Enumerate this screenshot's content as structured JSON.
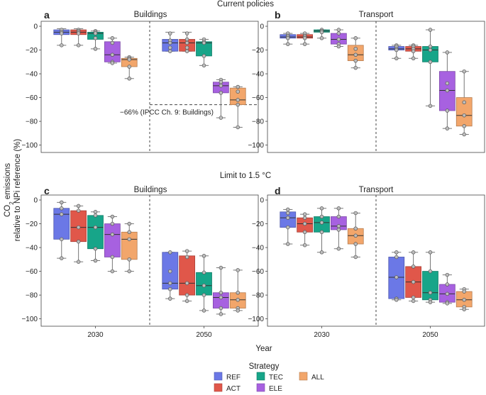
{
  "figure": {
    "row_titles": [
      "Current policies",
      "Limit to 1.5 °C"
    ],
    "ylabel_line1": "CO2 emissions",
    "ylabel_line2": "relative to NPi reference (%)",
    "xlabel": "Year",
    "legend_title": "Strategy"
  },
  "chart_data": [
    {
      "type": "box",
      "panel": "a",
      "title": "Buildings",
      "categories": [
        "2030",
        "2050"
      ],
      "ylim": [
        -105,
        3
      ],
      "yticks": [
        0,
        -20,
        -40,
        -60,
        -80,
        -100
      ],
      "grid": false,
      "reference_line": {
        "y": -66,
        "label": "−66% (IPCC Ch. 9: Buildings)"
      },
      "series": [
        {
          "name": "REF",
          "boxes": [
            {
              "year": "2030",
              "q1": -7,
              "median": -5,
              "q3": -3,
              "whisker_low": -16,
              "whisker_high": -2,
              "points": [
                -3,
                -5,
                -5,
                -6,
                -16
              ]
            },
            {
              "year": "2050",
              "q1": -21,
              "median": -14,
              "q3": -11,
              "whisker_low": -21,
              "whisker_high": -5,
              "points": [
                -6,
                -12,
                -14,
                -18,
                -21
              ]
            }
          ]
        },
        {
          "name": "ACT",
          "boxes": [
            {
              "year": "2030",
              "q1": -7,
              "median": -5,
              "q3": -3,
              "whisker_low": -16,
              "whisker_high": -2,
              "points": [
                -3,
                -4,
                -5,
                -6,
                -16
              ]
            },
            {
              "year": "2050",
              "q1": -21,
              "median": -14,
              "q3": -11,
              "whisker_low": -21,
              "whisker_high": -5,
              "points": [
                -6,
                -11,
                -14,
                -18,
                -21
              ]
            }
          ]
        },
        {
          "name": "TEC",
          "boxes": [
            {
              "year": "2030",
              "q1": -11,
              "median": -6,
              "q3": -5,
              "whisker_low": -19,
              "whisker_high": -4,
              "points": [
                -4,
                -5,
                -6,
                -10,
                -19
              ]
            },
            {
              "year": "2050",
              "q1": -25,
              "median": -14,
              "q3": -13,
              "whisker_low": -33,
              "whisker_high": -11,
              "points": [
                -11,
                -13,
                -14,
                -25,
                -33
              ]
            }
          ]
        },
        {
          "name": "ELE",
          "boxes": [
            {
              "year": "2030",
              "q1": -30,
              "median": -24,
              "q3": -13,
              "whisker_low": -31,
              "whisker_high": -10,
              "points": [
                -10,
                -14,
                -24,
                -30,
                -31
              ]
            },
            {
              "year": "2050",
              "q1": -56,
              "median": -50,
              "q3": -47,
              "whisker_low": -77,
              "whisker_high": -45,
              "points": [
                -45,
                -47,
                -50,
                -56,
                -77
              ]
            }
          ]
        },
        {
          "name": "ALL",
          "boxes": [
            {
              "year": "2030",
              "q1": -34,
              "median": -28,
              "q3": -27,
              "whisker_low": -44,
              "whisker_high": -26,
              "points": [
                -26,
                -27,
                -28,
                -34,
                -44
              ]
            },
            {
              "year": "2050",
              "q1": -66,
              "median": -62,
              "q3": -52,
              "whisker_low": -85,
              "whisker_high": -51,
              "points": [
                -51,
                -55,
                -62,
                -66,
                -85
              ]
            }
          ]
        }
      ]
    },
    {
      "type": "box",
      "panel": "b",
      "title": "Transport",
      "categories": [
        "2030",
        "2050"
      ],
      "ylim": [
        -105,
        3
      ],
      "yticks": [
        0,
        -20,
        -40,
        -60,
        -80,
        -100
      ],
      "grid": false,
      "series": [
        {
          "name": "REF",
          "boxes": [
            {
              "year": "2030",
              "q1": -10,
              "median": -9,
              "q3": -7,
              "whisker_low": -15,
              "whisker_high": -6,
              "points": [
                -6,
                -8,
                -9,
                -10,
                -15
              ]
            },
            {
              "year": "2050",
              "q1": -20,
              "median": -19,
              "q3": -17,
              "whisker_low": -27,
              "whisker_high": -16,
              "points": [
                -16,
                -17,
                -19,
                -20,
                -27
              ]
            }
          ]
        },
        {
          "name": "ACT",
          "boxes": [
            {
              "year": "2030",
              "q1": -10,
              "median": -9,
              "q3": -7,
              "whisker_low": -15,
              "whisker_high": -6,
              "points": [
                -6,
                -8,
                -9,
                -10,
                -15
              ]
            },
            {
              "year": "2050",
              "q1": -21,
              "median": -19,
              "q3": -17,
              "whisker_low": -27,
              "whisker_high": -16,
              "points": [
                -16,
                -17,
                -19,
                -21,
                -27
              ]
            }
          ]
        },
        {
          "name": "TEC",
          "boxes": [
            {
              "year": "2030",
              "q1": -5,
              "median": -4,
              "q3": -3,
              "whisker_low": -10,
              "whisker_high": -3,
              "points": [
                -3,
                -4,
                -4,
                -5,
                -10
              ]
            },
            {
              "year": "2050",
              "q1": -30,
              "median": -20,
              "q3": -17,
              "whisker_low": -67,
              "whisker_high": -3,
              "points": [
                -3,
                -17,
                -20,
                -30,
                -67
              ]
            }
          ]
        },
        {
          "name": "ELE",
          "boxes": [
            {
              "year": "2030",
              "q1": -15,
              "median": -11,
              "q3": -6,
              "whisker_low": -17,
              "whisker_high": -3,
              "points": [
                -3,
                -6,
                -11,
                -15,
                -17
              ]
            },
            {
              "year": "2050",
              "q1": -71,
              "median": -54,
              "q3": -38,
              "whisker_low": -86,
              "whisker_high": -22,
              "points": [
                -22,
                -48,
                -54,
                -71,
                -86
              ]
            }
          ]
        },
        {
          "name": "ALL",
          "boxes": [
            {
              "year": "2030",
              "q1": -29,
              "median": -24,
              "q3": -16,
              "whisker_low": -35,
              "whisker_high": -10,
              "points": [
                -10,
                -19,
                -24,
                -29,
                -35
              ]
            },
            {
              "year": "2050",
              "q1": -84,
              "median": -75,
              "q3": -60,
              "whisker_low": -91,
              "whisker_high": -38,
              "points": [
                -38,
                -64,
                -75,
                -84,
                -91
              ]
            }
          ]
        }
      ]
    },
    {
      "type": "box",
      "panel": "c",
      "title": "Buildings",
      "categories": [
        "2030",
        "2050"
      ],
      "ylim": [
        -105,
        3
      ],
      "yticks": [
        0,
        -20,
        -40,
        -60,
        -80,
        -100
      ],
      "grid": false,
      "series": [
        {
          "name": "REF",
          "boxes": [
            {
              "year": "2030",
              "q1": -33,
              "median": -12,
              "q3": -7,
              "whisker_low": -49,
              "whisker_high": -2,
              "points": [
                -2,
                -7,
                -12,
                -33,
                -49
              ]
            },
            {
              "year": "2050",
              "q1": -75,
              "median": -70,
              "q3": -44,
              "whisker_low": -83,
              "whisker_high": -44,
              "points": [
                -44,
                -60,
                -70,
                -75,
                -83
              ]
            }
          ]
        },
        {
          "name": "ACT",
          "boxes": [
            {
              "year": "2030",
              "q1": -35,
              "median": -23,
              "q3": -9,
              "whisker_low": -52,
              "whisker_high": -5,
              "points": [
                -5,
                -9,
                -23,
                -35,
                -52
              ]
            },
            {
              "year": "2050",
              "q1": -80,
              "median": -70,
              "q3": -47,
              "whisker_low": -85,
              "whisker_high": -43,
              "points": [
                -43,
                -48,
                -70,
                -80,
                -85
              ]
            }
          ]
        },
        {
          "name": "TEC",
          "boxes": [
            {
              "year": "2030",
              "q1": -41,
              "median": -23,
              "q3": -13,
              "whisker_low": -51,
              "whisker_high": -10,
              "points": [
                -10,
                -13,
                -23,
                -41,
                -51
              ]
            },
            {
              "year": "2050",
              "q1": -80,
              "median": -72,
              "q3": -61,
              "whisker_low": -93,
              "whisker_high": -47,
              "points": [
                -47,
                -61,
                -72,
                -80,
                -93
              ]
            }
          ]
        },
        {
          "name": "ELE",
          "boxes": [
            {
              "year": "2030",
              "q1": -48,
              "median": -29,
              "q3": -20,
              "whisker_low": -60,
              "whisker_high": -14,
              "points": [
                -14,
                -20,
                -29,
                -48,
                -60
              ]
            },
            {
              "year": "2050",
              "q1": -91,
              "median": -82,
              "q3": -78,
              "whisker_low": -96,
              "whisker_high": -57,
              "points": [
                -57,
                -78,
                -82,
                -91,
                -96
              ]
            }
          ]
        },
        {
          "name": "ALL",
          "boxes": [
            {
              "year": "2030",
              "q1": -50,
              "median": -33,
              "q3": -27,
              "whisker_low": -60,
              "whisker_high": -20,
              "points": [
                -20,
                -27,
                -33,
                -50,
                -60
              ]
            },
            {
              "year": "2050",
              "q1": -91,
              "median": -84,
              "q3": -78,
              "whisker_low": -93,
              "whisker_high": -59,
              "points": [
                -59,
                -78,
                -84,
                -91,
                -93
              ]
            }
          ]
        }
      ]
    },
    {
      "type": "box",
      "panel": "d",
      "title": "Transport",
      "categories": [
        "2030",
        "2050"
      ],
      "ylim": [
        -105,
        3
      ],
      "yticks": [
        0,
        -20,
        -40,
        -60,
        -80,
        -100
      ],
      "grid": false,
      "series": [
        {
          "name": "REF",
          "boxes": [
            {
              "year": "2030",
              "q1": -23,
              "median": -15,
              "q3": -10,
              "whisker_low": -37,
              "whisker_high": -8,
              "points": [
                -8,
                -11,
                -15,
                -23,
                -37
              ]
            },
            {
              "year": "2050",
              "q1": -83,
              "median": -65,
              "q3": -48,
              "whisker_low": -84,
              "whisker_high": -44,
              "points": [
                -44,
                -48,
                -65,
                -83,
                -84
              ]
            }
          ]
        },
        {
          "name": "ACT",
          "boxes": [
            {
              "year": "2030",
              "q1": -27,
              "median": -20,
              "q3": -15,
              "whisker_low": -38,
              "whisker_high": -12,
              "points": [
                -12,
                -15,
                -20,
                -27,
                -38
              ]
            },
            {
              "year": "2050",
              "q1": -82,
              "median": -69,
              "q3": -56,
              "whisker_low": -85,
              "whisker_high": -44,
              "points": [
                -44,
                -56,
                -69,
                -82,
                -85
              ]
            }
          ]
        },
        {
          "name": "TEC",
          "boxes": [
            {
              "year": "2030",
              "q1": -27,
              "median": -19,
              "q3": -14,
              "whisker_low": -44,
              "whisker_high": -7,
              "points": [
                -7,
                -14,
                -19,
                -27,
                -44
              ]
            },
            {
              "year": "2050",
              "q1": -84,
              "median": -78,
              "q3": -60,
              "whisker_low": -86,
              "whisker_high": -44,
              "points": [
                -44,
                -60,
                -78,
                -84,
                -86
              ]
            }
          ]
        },
        {
          "name": "ELE",
          "boxes": [
            {
              "year": "2030",
              "q1": -25,
              "median": -22,
              "q3": -14,
              "whisker_low": -41,
              "whisker_high": -7,
              "points": [
                -7,
                -14,
                -22,
                -25,
                -41
              ]
            },
            {
              "year": "2050",
              "q1": -86,
              "median": -79,
              "q3": -71,
              "whisker_low": -87,
              "whisker_high": -63,
              "points": [
                -63,
                -71,
                -79,
                -86,
                -87
              ]
            }
          ]
        },
        {
          "name": "ALL",
          "boxes": [
            {
              "year": "2030",
              "q1": -37,
              "median": -30,
              "q3": -24,
              "whisker_low": -48,
              "whisker_high": -11,
              "points": [
                -11,
                -24,
                -30,
                -37,
                -48
              ]
            },
            {
              "year": "2050",
              "q1": -90,
              "median": -84,
              "q3": -77,
              "whisker_low": -92,
              "whisker_high": -75,
              "points": [
                -75,
                -77,
                -84,
                -90,
                -92
              ]
            }
          ]
        }
      ]
    }
  ],
  "legend": {
    "title": "Strategy",
    "items": [
      {
        "name": "REF",
        "color": "#6b78e6"
      },
      {
        "name": "TEC",
        "color": "#17a589"
      },
      {
        "name": "ALL",
        "color": "#f2a66b"
      },
      {
        "name": "ACT",
        "color": "#e0574a"
      },
      {
        "name": "ELE",
        "color": "#a761e0"
      }
    ]
  },
  "colors": {
    "REF": "#6b78e6",
    "ACT": "#e0574a",
    "TEC": "#17a589",
    "ELE": "#a761e0",
    "ALL": "#f2a66b"
  }
}
